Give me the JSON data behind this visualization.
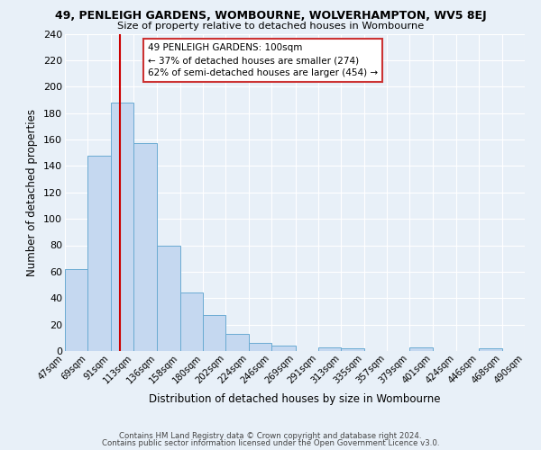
{
  "title": "49, PENLEIGH GARDENS, WOMBOURNE, WOLVERHAMPTON, WV5 8EJ",
  "subtitle": "Size of property relative to detached houses in Wombourne",
  "xlabel": "Distribution of detached houses by size in Wombourne",
  "ylabel": "Number of detached properties",
  "bin_edges": [
    47,
    69,
    91,
    113,
    136,
    158,
    180,
    202,
    224,
    246,
    269,
    291,
    313,
    335,
    357,
    379,
    401,
    424,
    446,
    468,
    490
  ],
  "bar_heights": [
    62,
    148,
    188,
    157,
    80,
    44,
    27,
    13,
    6,
    4,
    0,
    3,
    2,
    0,
    0,
    3,
    0,
    0,
    2,
    0
  ],
  "bar_color": "#c5d8f0",
  "bar_edge_color": "#6aabd2",
  "background_color": "#e8f0f8",
  "grid_color": "#ffffff",
  "vline_x": 100,
  "vline_color": "#cc0000",
  "annotation_line1": "49 PENLEIGH GARDENS: 100sqm",
  "annotation_line2": "← 37% of detached houses are smaller (274)",
  "annotation_line3": "62% of semi-detached houses are larger (454) →",
  "tick_labels": [
    "47sqm",
    "69sqm",
    "91sqm",
    "113sqm",
    "136sqm",
    "158sqm",
    "180sqm",
    "202sqm",
    "224sqm",
    "246sqm",
    "269sqm",
    "291sqm",
    "313sqm",
    "335sqm",
    "357sqm",
    "379sqm",
    "401sqm",
    "424sqm",
    "446sqm",
    "468sqm",
    "490sqm"
  ],
  "ylim": [
    0,
    240
  ],
  "yticks": [
    0,
    20,
    40,
    60,
    80,
    100,
    120,
    140,
    160,
    180,
    200,
    220,
    240
  ],
  "footnote1": "Contains HM Land Registry data © Crown copyright and database right 2024.",
  "footnote2": "Contains public sector information licensed under the Open Government Licence v3.0."
}
